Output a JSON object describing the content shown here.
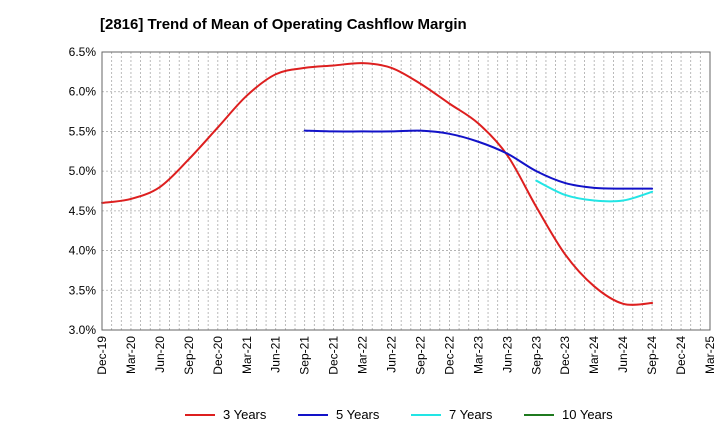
{
  "chart_data": {
    "type": "line",
    "title": "[2816]  Trend of Mean of Operating Cashflow Margin",
    "xlabel": "",
    "ylabel": "",
    "ylim": [
      3.0,
      6.5
    ],
    "yticks": [
      3.0,
      3.5,
      4.0,
      4.5,
      5.0,
      5.5,
      6.0,
      6.5
    ],
    "ytick_labels": [
      "3.0%",
      "3.5%",
      "4.0%",
      "4.5%",
      "5.0%",
      "5.5%",
      "6.0%",
      "6.5%"
    ],
    "categories": [
      "Dec-19",
      "Mar-20",
      "Jun-20",
      "Sep-20",
      "Dec-20",
      "Mar-21",
      "Jun-21",
      "Sep-21",
      "Dec-21",
      "Mar-22",
      "Jun-22",
      "Sep-22",
      "Dec-22",
      "Mar-23",
      "Jun-23",
      "Sep-23",
      "Dec-23",
      "Mar-24",
      "Jun-24",
      "Sep-24",
      "Dec-24",
      "Mar-25"
    ],
    "grid": true,
    "legend_position": "bottom",
    "series": [
      {
        "name": "3 Years",
        "color": "#dd1f1f",
        "values": [
          4.6,
          4.65,
          4.8,
          5.15,
          5.55,
          5.95,
          6.22,
          6.3,
          6.33,
          6.36,
          6.3,
          6.1,
          5.85,
          5.6,
          5.2,
          4.55,
          3.95,
          3.55,
          3.33,
          3.34,
          null,
          null
        ]
      },
      {
        "name": "5 Years",
        "color": "#1212c8",
        "values": [
          null,
          null,
          null,
          null,
          null,
          null,
          null,
          5.51,
          5.5,
          5.5,
          5.5,
          5.51,
          5.47,
          5.37,
          5.22,
          5.0,
          4.85,
          4.79,
          4.78,
          4.78,
          null,
          null
        ]
      },
      {
        "name": "7 Years",
        "color": "#22e5e5",
        "values": [
          null,
          null,
          null,
          null,
          null,
          null,
          null,
          null,
          null,
          null,
          null,
          null,
          null,
          null,
          null,
          4.88,
          4.7,
          4.63,
          4.63,
          4.74,
          null,
          null
        ]
      },
      {
        "name": "10 Years",
        "color": "#1f7a1f",
        "values": [
          null,
          null,
          null,
          null,
          null,
          null,
          null,
          null,
          null,
          null,
          null,
          null,
          null,
          null,
          null,
          null,
          null,
          null,
          null,
          null,
          null,
          null
        ]
      }
    ]
  }
}
